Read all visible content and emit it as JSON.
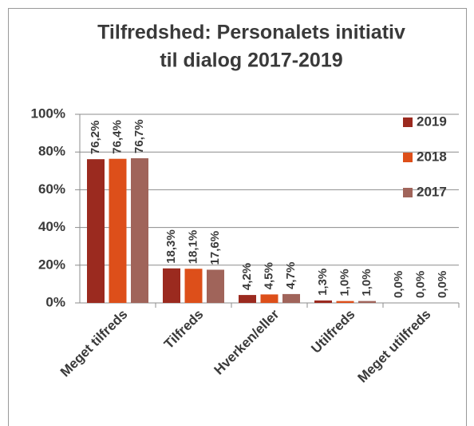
{
  "chart_data": {
    "type": "bar",
    "title": [
      "Tilfredshed: Personalets initiativ",
      "til dialog 2017-2019"
    ],
    "categories": [
      "Meget tilfreds",
      "Tilfreds",
      "Hverken/eller",
      "Utilfreds",
      "Meget utilfreds"
    ],
    "series": [
      {
        "name": "2019",
        "color": "#9b2a1f",
        "values": [
          76.2,
          18.3,
          4.2,
          1.3,
          0
        ],
        "value_labels": [
          "76,2%",
          "18,3%",
          "4,2%",
          "1,3%",
          "0,0%"
        ]
      },
      {
        "name": "2018",
        "color": "#dd4f1a",
        "values": [
          76.4,
          18.1,
          4.5,
          1.0,
          0
        ],
        "value_labels": [
          "76,4%",
          "18,1%",
          "4,5%",
          "1,0%",
          "0,0%"
        ]
      },
      {
        "name": "2017",
        "color": "#a0645a",
        "values": [
          76.7,
          17.6,
          4.7,
          1.0,
          0
        ],
        "value_labels": [
          "76,7%",
          "17,6%",
          "4,7%",
          "1,0%",
          "0,0%"
        ]
      }
    ],
    "ylim": [
      0,
      100
    ],
    "yticks": [
      {
        "value": 0,
        "label": "0%"
      },
      {
        "value": 20,
        "label": "20%"
      },
      {
        "value": 40,
        "label": "40%"
      },
      {
        "value": 60,
        "label": "60%"
      },
      {
        "value": 80,
        "label": "80%"
      },
      {
        "value": 100,
        "label": "100%"
      }
    ],
    "grid": true,
    "legend": "right"
  }
}
